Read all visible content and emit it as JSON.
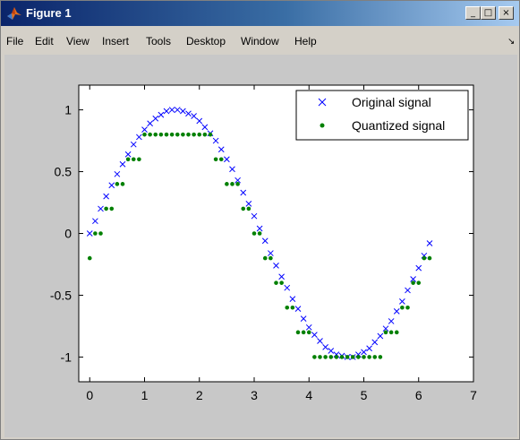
{
  "window": {
    "title": "Figure 1",
    "controls": {
      "minimize": "_",
      "maximize": "□",
      "close": "×"
    }
  },
  "menu": {
    "items": [
      "File",
      "Edit",
      "View",
      "Insert",
      "Tools",
      "Desktop",
      "Window",
      "Help"
    ],
    "dock_glyph": "↘"
  },
  "icons": {
    "title": "matlab-logo-icon"
  },
  "colors": {
    "original": "#0000ff",
    "quantized": "#008000",
    "axes_bg": "#ffffff",
    "figure_bg": "#c8c8c8"
  },
  "chart_data": {
    "type": "scatter",
    "xlim": [
      -0.2,
      7
    ],
    "ylim": [
      -1.2,
      1.2
    ],
    "xticks": [
      0,
      1,
      2,
      3,
      4,
      5,
      6,
      7
    ],
    "yticks": [
      -1,
      -0.5,
      0,
      0.5,
      1
    ],
    "ytick_labels": [
      "-1",
      "-0.5",
      "0",
      "0.5",
      "1"
    ],
    "grid": false,
    "legend": {
      "position": "top-right",
      "entries": [
        "Original signal",
        "Quantized signal"
      ]
    },
    "series": [
      {
        "name": "Original signal",
        "marker": "x",
        "x": [
          0,
          0.1,
          0.2,
          0.3,
          0.4,
          0.5,
          0.6,
          0.7,
          0.8,
          0.9,
          1.0,
          1.1,
          1.2,
          1.3,
          1.4,
          1.5,
          1.6,
          1.7,
          1.8,
          1.9,
          2.0,
          2.1,
          2.2,
          2.3,
          2.4,
          2.5,
          2.6,
          2.7,
          2.8,
          2.9,
          3.0,
          3.1,
          3.2,
          3.3,
          3.4,
          3.5,
          3.6,
          3.7,
          3.8,
          3.9,
          4.0,
          4.1,
          4.2,
          4.3,
          4.4,
          4.5,
          4.6,
          4.7,
          4.8,
          4.9,
          5.0,
          5.1,
          5.2,
          5.3,
          5.4,
          5.5,
          5.6,
          5.7,
          5.8,
          5.9,
          6.0,
          6.1,
          6.2
        ],
        "y": [
          0,
          0.1,
          0.2,
          0.3,
          0.39,
          0.48,
          0.56,
          0.64,
          0.72,
          0.78,
          0.84,
          0.89,
          0.93,
          0.96,
          0.99,
          1.0,
          1.0,
          0.99,
          0.97,
          0.95,
          0.91,
          0.86,
          0.81,
          0.75,
          0.68,
          0.6,
          0.52,
          0.43,
          0.33,
          0.24,
          0.14,
          0.04,
          -0.06,
          -0.16,
          -0.26,
          -0.35,
          -0.44,
          -0.53,
          -0.61,
          -0.69,
          -0.76,
          -0.82,
          -0.87,
          -0.92,
          -0.95,
          -0.98,
          -0.99,
          -1.0,
          -1.0,
          -0.98,
          -0.96,
          -0.93,
          -0.88,
          -0.83,
          -0.77,
          -0.71,
          -0.63,
          -0.55,
          -0.46,
          -0.37,
          -0.28,
          -0.18,
          -0.08
        ]
      },
      {
        "name": "Quantized signal",
        "marker": "dot",
        "x": [
          0,
          0.1,
          0.2,
          0.3,
          0.4,
          0.5,
          0.6,
          0.7,
          0.8,
          0.9,
          1.0,
          1.1,
          1.2,
          1.3,
          1.4,
          1.5,
          1.6,
          1.7,
          1.8,
          1.9,
          2.0,
          2.1,
          2.2,
          2.3,
          2.4,
          2.5,
          2.6,
          2.7,
          2.8,
          2.9,
          3.0,
          3.1,
          3.2,
          3.3,
          3.4,
          3.5,
          3.6,
          3.7,
          3.8,
          3.9,
          4.0,
          4.1,
          4.2,
          4.3,
          4.4,
          4.5,
          4.6,
          4.7,
          4.8,
          4.9,
          5.0,
          5.1,
          5.2,
          5.3,
          5.4,
          5.5,
          5.6,
          5.7,
          5.8,
          5.9,
          6.0,
          6.1,
          6.2
        ],
        "y": [
          -0.2,
          0,
          0,
          0.2,
          0.2,
          0.4,
          0.4,
          0.6,
          0.6,
          0.6,
          0.8,
          0.8,
          0.8,
          0.8,
          0.8,
          0.8,
          0.8,
          0.8,
          0.8,
          0.8,
          0.8,
          0.8,
          0.8,
          0.6,
          0.6,
          0.4,
          0.4,
          0.4,
          0.2,
          0.2,
          0,
          0,
          -0.2,
          -0.2,
          -0.4,
          -0.4,
          -0.6,
          -0.6,
          -0.8,
          -0.8,
          -0.8,
          -1.0,
          -1.0,
          -1.0,
          -1.0,
          -1.0,
          -1.0,
          -1.0,
          -1.0,
          -1.0,
          -1.0,
          -1.0,
          -1.0,
          -1.0,
          -0.8,
          -0.8,
          -0.8,
          -0.6,
          -0.6,
          -0.4,
          -0.4,
          -0.2,
          -0.2
        ]
      }
    ]
  }
}
